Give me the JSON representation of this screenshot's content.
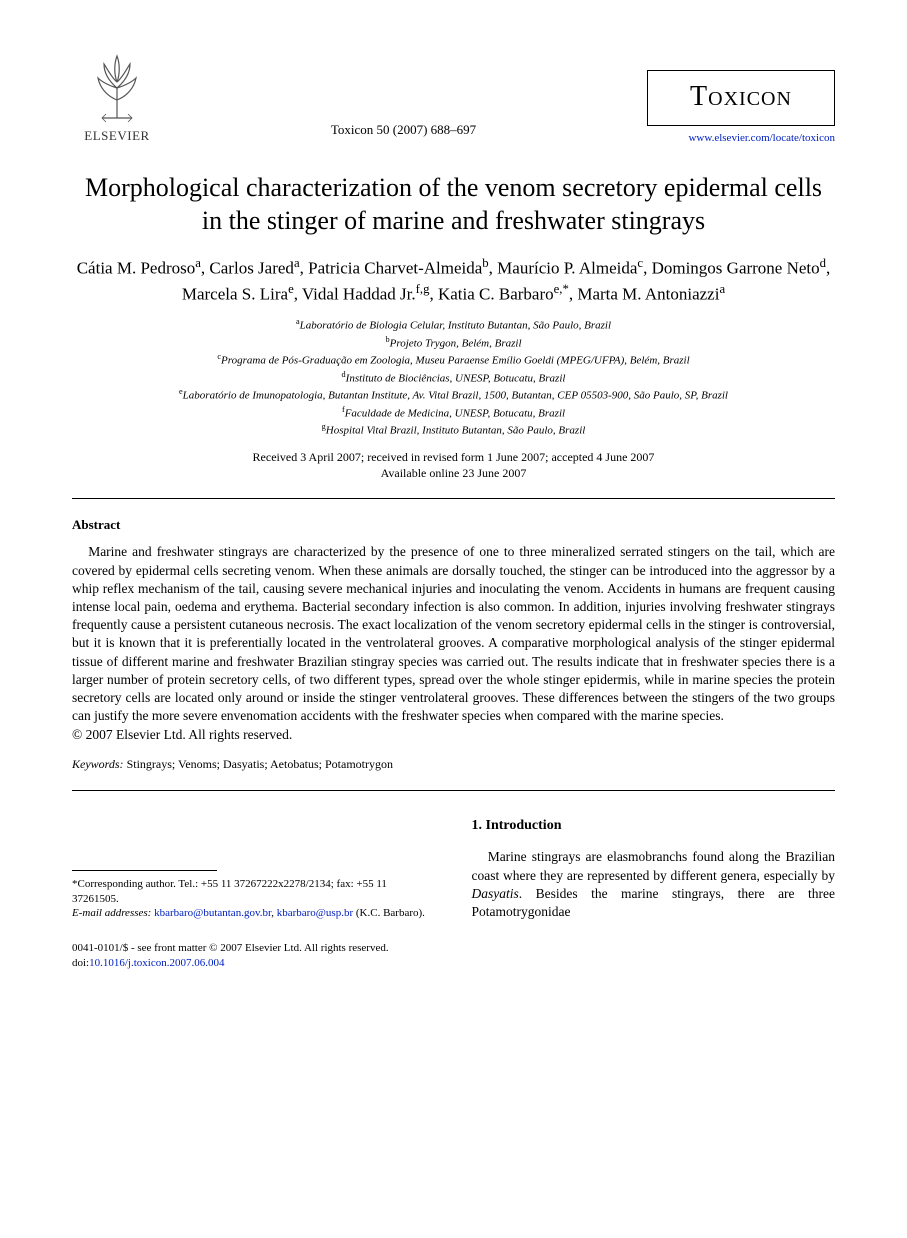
{
  "header": {
    "publisher_name": "ELSEVIER",
    "citation": "Toxicon 50 (2007) 688–697",
    "journal_name": "Toxicon",
    "journal_link": "www.elsevier.com/locate/toxicon"
  },
  "title": "Morphological characterization of the venom secretory epidermal cells in the stinger of marine and freshwater stingrays",
  "authors_html": "Cátia M. Pedroso<sup>a</sup>, Carlos Jared<sup>a</sup>, Patricia Charvet-Almeida<sup>b</sup>, Maurício P. Almeida<sup>c</sup>, Domingos Garrone Neto<sup>d</sup>, Marcela S. Lira<sup>e</sup>, Vidal Haddad Jr.<sup>f,g</sup>, Katia C. Barbaro<sup>e,*</sup>, Marta M. Antoniazzi<sup>a</sup>",
  "affiliations": [
    {
      "sup": "a",
      "text": "Laboratório de Biologia Celular, Instituto Butantan, São Paulo, Brazil"
    },
    {
      "sup": "b",
      "text": "Projeto Trygon, Belém, Brazil"
    },
    {
      "sup": "c",
      "text": "Programa de Pós-Graduação em Zoologia, Museu Paraense Emílio Goeldi (MPEG/UFPA), Belém, Brazil"
    },
    {
      "sup": "d",
      "text": "Instituto de Biociências, UNESP, Botucatu, Brazil"
    },
    {
      "sup": "e",
      "text": "Laboratório de Imunopatologia, Butantan Institute, Av. Vital Brazil, 1500, Butantan, CEP 05503-900, São Paulo, SP, Brazil"
    },
    {
      "sup": "f",
      "text": "Faculdade de Medicina, UNESP, Botucatu, Brazil"
    },
    {
      "sup": "g",
      "text": "Hospital Vital Brazil, Instituto Butantan, São Paulo, Brazil"
    }
  ],
  "dates": {
    "line1": "Received 3 April 2007; received in revised form 1 June 2007; accepted 4 June 2007",
    "line2": "Available online 23 June 2007"
  },
  "abstract": {
    "heading": "Abstract",
    "body": "Marine and freshwater stingrays are characterized by the presence of one to three mineralized serrated stingers on the tail, which are covered by epidermal cells secreting venom. When these animals are dorsally touched, the stinger can be introduced into the aggressor by a whip reflex mechanism of the tail, causing severe mechanical injuries and inoculating the venom. Accidents in humans are frequent causing intense local pain, oedema and erythema. Bacterial secondary infection is also common. In addition, injuries involving freshwater stingrays frequently cause a persistent cutaneous necrosis. The exact localization of the venom secretory epidermal cells in the stinger is controversial, but it is known that it is preferentially located in the ventrolateral grooves. A comparative morphological analysis of the stinger epidermal tissue of different marine and freshwater Brazilian stingray species was carried out. The results indicate that in freshwater species there is a larger number of protein secretory cells, of two different types, spread over the whole stinger epidermis, while in marine species the protein secretory cells are located only around or inside the stinger ventrolateral grooves. These differences between the stingers of the two groups can justify the more severe envenomation accidents with the freshwater species when compared with the marine species.",
    "copyright": "© 2007 Elsevier Ltd. All rights reserved."
  },
  "keywords": {
    "label": "Keywords:",
    "text": " Stingrays; Venoms; Dasyatis; Aetobatus; Potamotrygon"
  },
  "footnote": {
    "corresponding": "*Corresponding author. Tel.: +55 11 37267222x2278/2134; fax: +55 11 37261505.",
    "email_label": "E-mail addresses:",
    "email1": "kbarbaro@butantan.gov.br",
    "email2": "kbarbaro@usp.br",
    "email_name": " (K.C. Barbaro)."
  },
  "intro": {
    "heading": "1. Introduction",
    "body": "Marine stingrays are elasmobranchs found along the Brazilian coast where they are represented by different genera, especially by Dasyatis. Besides the marine stingrays, there are three Potamotrygonidae"
  },
  "footer": {
    "line1": "0041-0101/$ - see front matter © 2007 Elsevier Ltd. All rights reserved.",
    "doi_label": "doi:",
    "doi": "10.1016/j.toxicon.2007.06.004"
  },
  "colors": {
    "link": "#0020c0",
    "text": "#000000",
    "background": "#ffffff"
  }
}
